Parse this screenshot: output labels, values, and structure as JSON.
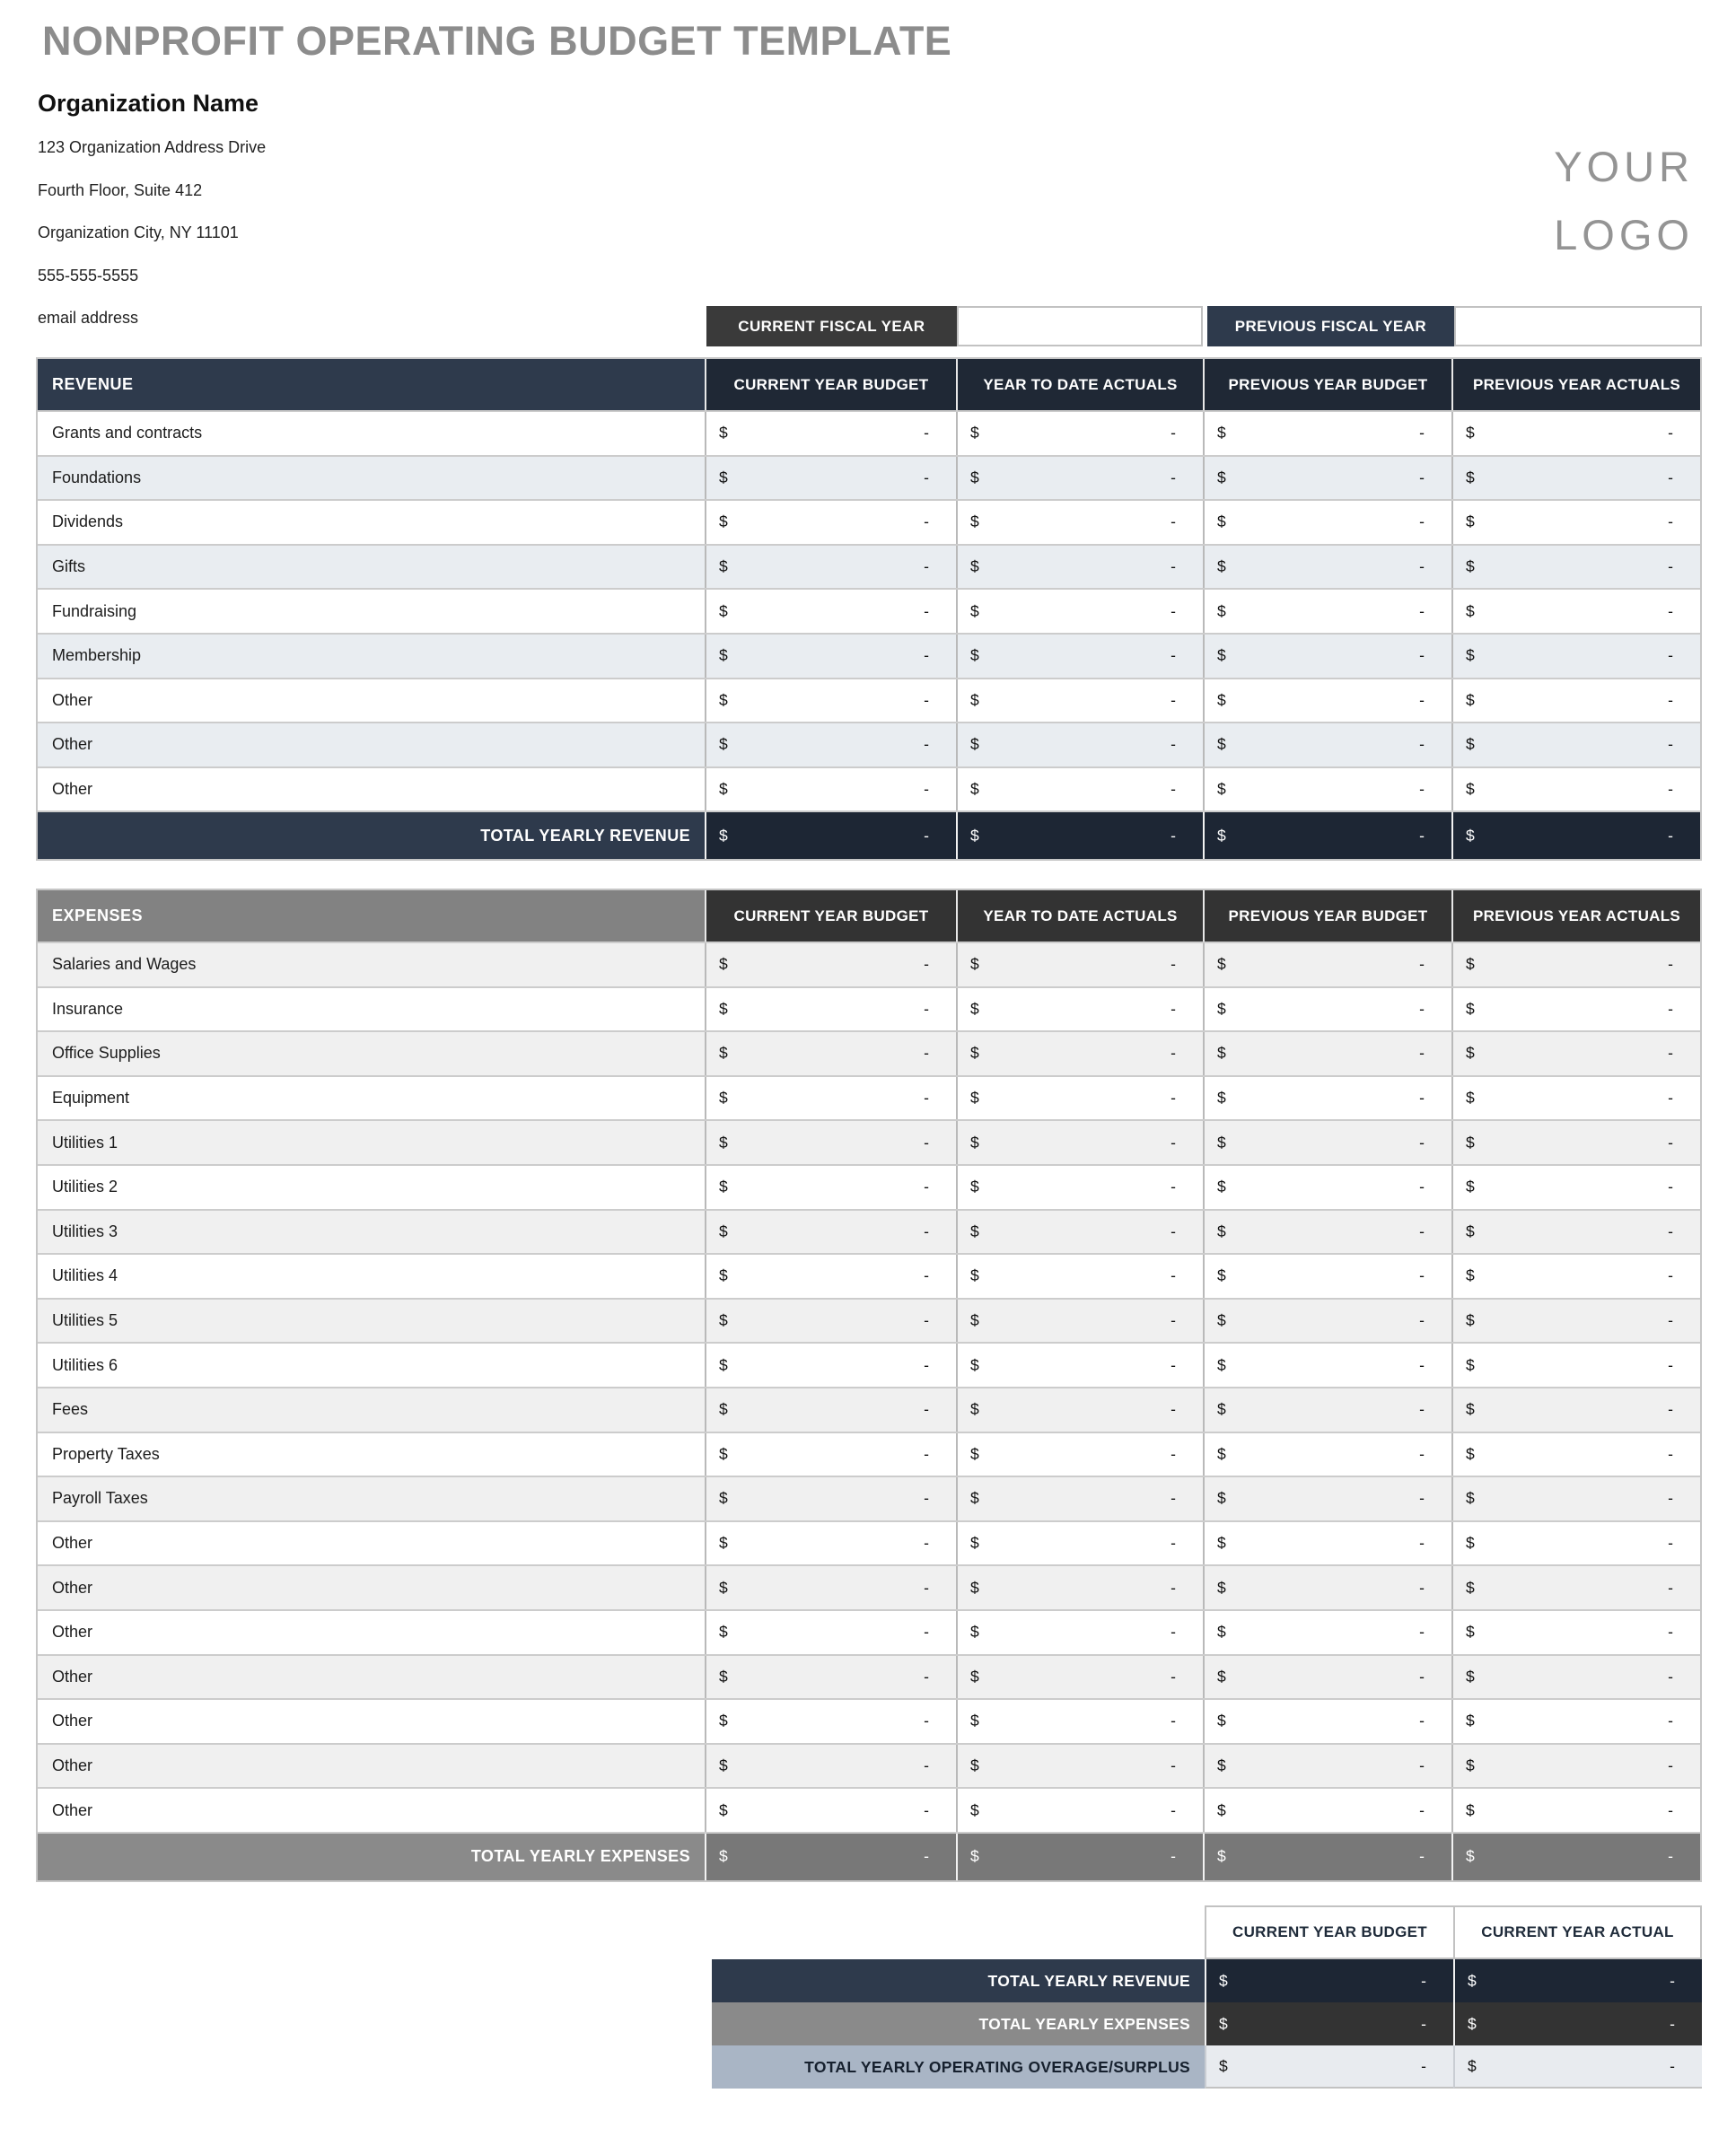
{
  "page": {
    "title": "NONPROFIT OPERATING BUDGET TEMPLATE",
    "logo": {
      "line1": "YOUR",
      "line2": "LOGO"
    }
  },
  "organization": {
    "name": "Organization Name",
    "address_lines": [
      "123 Organization Address Drive",
      "Fourth Floor, Suite 412",
      "Organization City, NY  11101",
      "555-555-5555",
      "email address"
    ]
  },
  "fiscal_year": {
    "current_label": "CURRENT FISCAL YEAR",
    "current_value": "",
    "previous_label": "PREVIOUS FISCAL YEAR",
    "previous_value": ""
  },
  "money_columns": [
    "CURRENT YEAR BUDGET",
    "YEAR TO DATE ACTUALS",
    "PREVIOUS YEAR BUDGET",
    "PREVIOUS YEAR ACTUALS"
  ],
  "money_cell": {
    "currency": "$",
    "placeholder": "-"
  },
  "revenue": {
    "section_label": "REVENUE",
    "rows": [
      "Grants and contracts",
      "Foundations",
      "Dividends",
      "Gifts",
      "Fundraising",
      "Membership",
      "Other",
      "Other",
      "Other"
    ],
    "total_label": "TOTAL YEARLY REVENUE"
  },
  "expenses": {
    "section_label": "EXPENSES",
    "rows": [
      "Salaries and Wages",
      "Insurance",
      "Office Supplies",
      "Equipment",
      "Utilities 1",
      "Utilities 2",
      "Utilities 3",
      "Utilities 4",
      "Utilities 5",
      "Utilities 6",
      "Fees",
      "Property Taxes",
      "Payroll Taxes",
      "Other",
      "Other",
      "Other",
      "Other",
      "Other",
      "Other",
      "Other"
    ],
    "total_label": "TOTAL YEARLY EXPENSES"
  },
  "summary": {
    "columns": [
      "CURRENT YEAR BUDGET",
      "CURRENT YEAR ACTUAL"
    ],
    "rows": [
      {
        "label": "TOTAL YEARLY REVENUE",
        "variant": "navy"
      },
      {
        "label": "TOTAL YEARLY EXPENSES",
        "variant": "gray"
      },
      {
        "label": "TOTAL YEARLY OPERATING OVERAGE/SURPLUS",
        "variant": "light"
      }
    ]
  },
  "colors": {
    "title_gray": "#8c8c8c",
    "slate_navy": "#2e3a4c",
    "dark_navy": "#1f2835",
    "total_navy": "#1d2634",
    "charcoal": "#3a3a3a",
    "header_charcoal": "#333333",
    "section_gray": "#828282",
    "total_gray": "#787878",
    "steel_blue": "#a9b5c5",
    "alt_row_blue": "#e9edf1",
    "alt_row_gray": "#f0f0f0",
    "light_cell": "#e8ebef"
  }
}
